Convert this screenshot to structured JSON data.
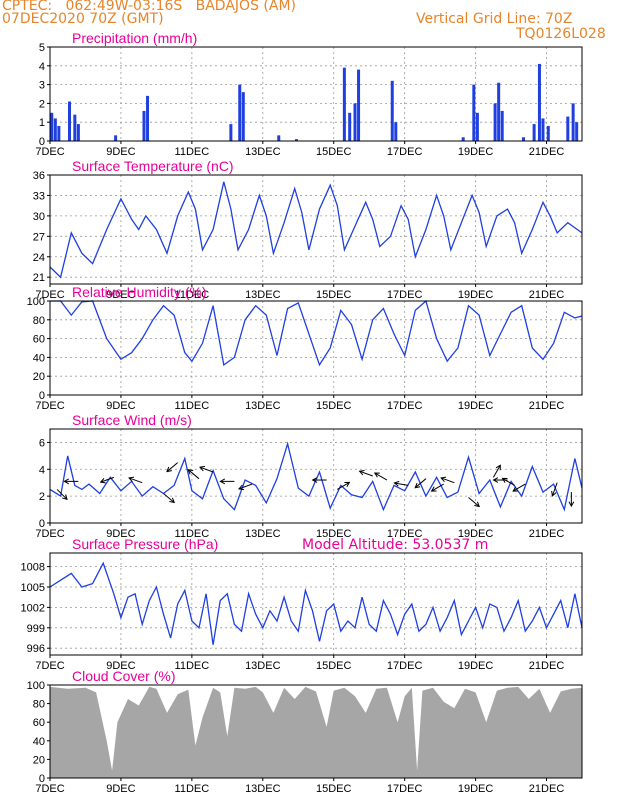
{
  "header": {
    "line1": "CPTEC:   062:49W-03:16S   BADAJOS (AM)",
    "line2": "07DEC2020 70Z (GMT)",
    "grid_note": "Vertical Grid Line: 70Z",
    "code": "TQ0126L028",
    "model_altitude": "Model Altitude: 53.0537 m"
  },
  "colors": {
    "header": "#e8842a",
    "panel_title": "#e8009a",
    "series": "#1f3fe0",
    "cloud": "#a6a6a6",
    "grid": "#999999"
  },
  "x_axis": {
    "start_day": 7,
    "end_day": 22,
    "tick_labels": [
      {
        "day": 7,
        "label": "7DEC"
      },
      {
        "day": 9,
        "label": "9DEC"
      },
      {
        "day": 11,
        "label": "11DEC"
      },
      {
        "day": 13,
        "label": "13DEC"
      },
      {
        "day": 15,
        "label": "15DEC"
      },
      {
        "day": 17,
        "label": "17DEC"
      },
      {
        "day": 19,
        "label": "19DEC"
      },
      {
        "day": 21,
        "label": "21DEC"
      }
    ]
  },
  "chart_data": [
    {
      "type": "bar",
      "title": "Precipitation (mm/h)",
      "ylim": [
        0,
        5
      ],
      "yticks": [
        "0",
        "1",
        "2",
        "3",
        "4",
        "5"
      ],
      "grid": true,
      "events": [
        {
          "day": 7.05,
          "value": 1.5
        },
        {
          "day": 7.15,
          "value": 1.2
        },
        {
          "day": 7.25,
          "value": 0.8
        },
        {
          "day": 7.55,
          "value": 2.1
        },
        {
          "day": 7.7,
          "value": 1.4
        },
        {
          "day": 7.8,
          "value": 0.9
        },
        {
          "day": 8.85,
          "value": 0.3
        },
        {
          "day": 9.65,
          "value": 1.6
        },
        {
          "day": 9.75,
          "value": 2.4
        },
        {
          "day": 12.1,
          "value": 0.9
        },
        {
          "day": 12.35,
          "value": 3.0
        },
        {
          "day": 12.45,
          "value": 2.6
        },
        {
          "day": 13.45,
          "value": 0.3
        },
        {
          "day": 13.95,
          "value": 0.1
        },
        {
          "day": 15.3,
          "value": 3.9
        },
        {
          "day": 15.45,
          "value": 1.5
        },
        {
          "day": 15.6,
          "value": 2.0
        },
        {
          "day": 15.7,
          "value": 3.8
        },
        {
          "day": 16.65,
          "value": 3.2
        },
        {
          "day": 16.75,
          "value": 1.0
        },
        {
          "day": 18.65,
          "value": 0.2
        },
        {
          "day": 18.95,
          "value": 3.0
        },
        {
          "day": 19.05,
          "value": 1.5
        },
        {
          "day": 19.55,
          "value": 2.0
        },
        {
          "day": 19.65,
          "value": 3.1
        },
        {
          "day": 19.75,
          "value": 1.6
        },
        {
          "day": 20.35,
          "value": 0.2
        },
        {
          "day": 20.65,
          "value": 0.9
        },
        {
          "day": 20.8,
          "value": 4.1
        },
        {
          "day": 20.9,
          "value": 1.2
        },
        {
          "day": 21.05,
          "value": 0.8
        },
        {
          "day": 21.6,
          "value": 1.3
        },
        {
          "day": 21.75,
          "value": 2.0
        },
        {
          "day": 21.85,
          "value": 1.0
        }
      ]
    },
    {
      "type": "line",
      "title": "Surface Temperature (nC)",
      "ylim": [
        20,
        36
      ],
      "yticks": [
        "21",
        "24",
        "27",
        "30",
        "33",
        "36"
      ],
      "grid": true,
      "series": [
        {
          "x": [
            7,
            7.3,
            7.6,
            7.9,
            8.2,
            8.6,
            9,
            9.3,
            9.5,
            9.7,
            10,
            10.3,
            10.6,
            10.9,
            11.1,
            11.3,
            11.6,
            11.9,
            12.1,
            12.3,
            12.6,
            12.9,
            13.1,
            13.3,
            13.6,
            13.9,
            14.1,
            14.3,
            14.6,
            14.9,
            15.1,
            15.3,
            15.6,
            15.9,
            16.1,
            16.3,
            16.6,
            16.9,
            17.1,
            17.3,
            17.6,
            17.9,
            18.1,
            18.3,
            18.6,
            18.9,
            19.1,
            19.3,
            19.6,
            19.9,
            20.1,
            20.3,
            20.6,
            20.9,
            21.1,
            21.3,
            21.6,
            22
          ],
          "y": [
            22.5,
            21.0,
            27.5,
            24.5,
            23.0,
            28.0,
            32.5,
            29.5,
            28.0,
            30.0,
            28.0,
            24.5,
            30.0,
            33.5,
            31.0,
            25.0,
            28.0,
            35.0,
            31.0,
            25.0,
            28.0,
            33.0,
            30.0,
            24.5,
            29.0,
            34.0,
            30.5,
            25.0,
            31.0,
            34.5,
            31.5,
            25.0,
            28.5,
            32.0,
            29.5,
            25.5,
            27.0,
            31.5,
            29.5,
            24.0,
            28.0,
            33.0,
            30.0,
            25.0,
            29.0,
            33.0,
            30.5,
            25.5,
            30.0,
            31.0,
            29.0,
            24.5,
            28.0,
            32.0,
            30.0,
            27.5,
            29.0,
            27.5
          ]
        }
      ]
    },
    {
      "type": "line",
      "title": "Relative Humidity (%)",
      "ylim": [
        0,
        100
      ],
      "yticks": [
        "0",
        "20",
        "40",
        "60",
        "80",
        "100"
      ],
      "grid": true,
      "series": [
        {
          "x": [
            7,
            7.3,
            7.6,
            7.9,
            8.2,
            8.6,
            9,
            9.3,
            9.6,
            9.9,
            10.2,
            10.5,
            10.8,
            11,
            11.3,
            11.6,
            11.9,
            12.2,
            12.5,
            12.8,
            13.1,
            13.4,
            13.7,
            14,
            14.3,
            14.6,
            14.9,
            15.2,
            15.5,
            15.8,
            16.1,
            16.4,
            16.7,
            17,
            17.3,
            17.6,
            17.9,
            18.2,
            18.5,
            18.8,
            19.1,
            19.4,
            19.7,
            20,
            20.3,
            20.6,
            20.9,
            21.2,
            21.5,
            21.8,
            22
          ],
          "y": [
            100,
            100,
            85,
            99,
            100,
            60,
            38,
            45,
            60,
            80,
            95,
            85,
            45,
            36,
            55,
            95,
            32,
            40,
            80,
            95,
            85,
            42,
            92,
            98,
            65,
            32,
            50,
            90,
            75,
            38,
            80,
            92,
            65,
            42,
            90,
            100,
            60,
            36,
            50,
            95,
            85,
            42,
            65,
            88,
            95,
            50,
            38,
            55,
            88,
            82,
            84
          ]
        }
      ]
    },
    {
      "type": "line",
      "title": "Surface Wind (m/s)",
      "ylim": [
        0,
        7
      ],
      "yticks": [
        "0",
        "2",
        "4",
        "6"
      ],
      "grid": true,
      "series": [
        {
          "x": [
            7,
            7.3,
            7.5,
            7.7,
            7.9,
            8.1,
            8.4,
            8.7,
            9,
            9.3,
            9.6,
            9.9,
            10.2,
            10.5,
            10.8,
            11,
            11.3,
            11.6,
            11.9,
            12.2,
            12.5,
            12.8,
            13.1,
            13.4,
            13.7,
            14,
            14.3,
            14.6,
            14.9,
            15.2,
            15.5,
            15.8,
            16.1,
            16.4,
            16.7,
            17,
            17.3,
            17.6,
            17.9,
            18.2,
            18.5,
            18.8,
            19.1,
            19.4,
            19.7,
            20,
            20.3,
            20.6,
            20.9,
            21.2,
            21.5,
            21.8,
            22
          ],
          "y": [
            2.5,
            2.0,
            5.0,
            2.8,
            2.5,
            2.9,
            2.2,
            3.4,
            2.4,
            3.1,
            2.0,
            2.7,
            2.2,
            2.8,
            4.8,
            2.4,
            1.8,
            3.9,
            1.8,
            1.0,
            3.2,
            2.8,
            1.5,
            3.3,
            5.9,
            2.6,
            2.0,
            3.8,
            1.1,
            2.8,
            2.1,
            1.9,
            3.1,
            1.0,
            2.8,
            2.4,
            3.8,
            2.0,
            3.4,
            1.9,
            2.3,
            4.9,
            2.2,
            3.2,
            1.2,
            3.1,
            2.0,
            4.2,
            2.3,
            2.9,
            1.0,
            4.8,
            2.6
          ]
        }
      ],
      "vectors": [
        {
          "day": 7.2,
          "value": 2.5,
          "dir": -45
        },
        {
          "day": 7.8,
          "value": 3.1,
          "dir": 180
        },
        {
          "day": 8.8,
          "value": 3.4,
          "dir": 200
        },
        {
          "day": 9.6,
          "value": 3.0,
          "dir": 160
        },
        {
          "day": 10.2,
          "value": 2.2,
          "dir": -40
        },
        {
          "day": 10.6,
          "value": 4.5,
          "dir": 220
        },
        {
          "day": 11.2,
          "value": 3.3,
          "dir": 140
        },
        {
          "day": 11.6,
          "value": 3.8,
          "dir": 160
        },
        {
          "day": 12.2,
          "value": 3.1,
          "dir": 180
        },
        {
          "day": 12.7,
          "value": 2.9,
          "dir": 200
        },
        {
          "day": 14.8,
          "value": 3.2,
          "dir": 180
        },
        {
          "day": 15.1,
          "value": 2.5,
          "dir": 30
        },
        {
          "day": 16.1,
          "value": 3.5,
          "dir": 160
        },
        {
          "day": 16.5,
          "value": 3.2,
          "dir": 150
        },
        {
          "day": 17.1,
          "value": 2.8,
          "dir": 170
        },
        {
          "day": 17.6,
          "value": 3.3,
          "dir": 220
        },
        {
          "day": 18.1,
          "value": 2.9,
          "dir": 210
        },
        {
          "day": 18.4,
          "value": 3.0,
          "dir": 160
        },
        {
          "day": 18.8,
          "value": 1.9,
          "dir": -40
        },
        {
          "day": 19.5,
          "value": 3.4,
          "dir": 60
        },
        {
          "day": 19.9,
          "value": 3.2,
          "dir": 180
        },
        {
          "day": 20.1,
          "value": 2.8,
          "dir": 150
        },
        {
          "day": 20.4,
          "value": 2.9,
          "dir": 210
        },
        {
          "day": 21.3,
          "value": 3.0,
          "dir": 250
        },
        {
          "day": 21.7,
          "value": 2.3,
          "dir": 270
        }
      ]
    },
    {
      "type": "line",
      "title": "Surface Pressure (hPa)",
      "ylim": [
        995,
        1010
      ],
      "yticks": [
        "996",
        "999",
        "1002",
        "1005",
        "1008"
      ],
      "grid": true,
      "series": [
        {
          "x": [
            7,
            7.3,
            7.6,
            7.9,
            8.2,
            8.5,
            8.8,
            9,
            9.2,
            9.4,
            9.6,
            9.8,
            10,
            10.2,
            10.4,
            10.6,
            10.8,
            11,
            11.2,
            11.4,
            11.6,
            11.8,
            12,
            12.2,
            12.4,
            12.6,
            12.8,
            13,
            13.2,
            13.4,
            13.6,
            13.8,
            14,
            14.2,
            14.4,
            14.6,
            14.8,
            15,
            15.2,
            15.4,
            15.6,
            15.8,
            16,
            16.2,
            16.4,
            16.6,
            16.8,
            17,
            17.2,
            17.4,
            17.6,
            17.8,
            18,
            18.2,
            18.4,
            18.6,
            18.8,
            19,
            19.2,
            19.4,
            19.6,
            19.8,
            20,
            20.2,
            20.4,
            20.6,
            20.8,
            21,
            21.2,
            21.4,
            21.6,
            21.8,
            22
          ],
          "y": [
            1005,
            1006,
            1007,
            1005,
            1005.5,
            1008.5,
            1004,
            1000.5,
            1003.5,
            1004,
            999.5,
            1003,
            1005,
            1001,
            997.5,
            1002.5,
            1004.5,
            1000,
            999,
            1004,
            996.5,
            1003,
            1004,
            999.5,
            998.5,
            1004,
            1001,
            999,
            1001.5,
            1000,
            1003.5,
            1000,
            998.5,
            1004.5,
            1001.5,
            997,
            1001.5,
            1002.5,
            998.5,
            1000,
            999,
            1003.5,
            999.5,
            998.5,
            1003,
            1001,
            998,
            1001,
            1002.5,
            998.5,
            999.5,
            1002,
            998.5,
            1000.5,
            1003,
            998,
            1000,
            1002,
            999,
            1002.5,
            1002,
            998.5,
            1000.5,
            1003,
            998.5,
            1000,
            1002,
            999,
            1001,
            1003,
            999,
            1004,
            999
          ]
        }
      ]
    },
    {
      "type": "area",
      "title": "Cloud Cover (%)",
      "ylim": [
        0,
        100
      ],
      "yticks": [
        "0",
        "20",
        "40",
        "60",
        "80",
        "100"
      ],
      "grid": false,
      "series": [
        {
          "x": [
            7,
            7.5,
            8,
            8.3,
            8.6,
            8.75,
            8.9,
            9.2,
            9.5,
            9.8,
            10,
            10.3,
            10.6,
            10.9,
            11.1,
            11.3,
            11.6,
            11.8,
            12,
            12.2,
            12.5,
            12.8,
            13,
            13.3,
            13.6,
            13.9,
            14.2,
            14.5,
            14.8,
            15,
            15.3,
            15.6,
            15.9,
            16.2,
            16.5,
            16.8,
            17,
            17.2,
            17.35,
            17.5,
            17.8,
            18.1,
            18.4,
            18.7,
            19,
            19.3,
            19.6,
            19.9,
            20.2,
            20.5,
            20.8,
            21.1,
            21.4,
            21.7,
            22
          ],
          "y": [
            98,
            96,
            97,
            92,
            40,
            8,
            60,
            85,
            78,
            98,
            96,
            70,
            90,
            95,
            35,
            65,
            97,
            92,
            45,
            97,
            96,
            98,
            92,
            70,
            97,
            85,
            98,
            93,
            55,
            94,
            97,
            88,
            70,
            96,
            97,
            60,
            88,
            97,
            8,
            94,
            97,
            82,
            75,
            96,
            92,
            60,
            94,
            97,
            98,
            85,
            96,
            70,
            93,
            96,
            97
          ]
        }
      ]
    }
  ]
}
